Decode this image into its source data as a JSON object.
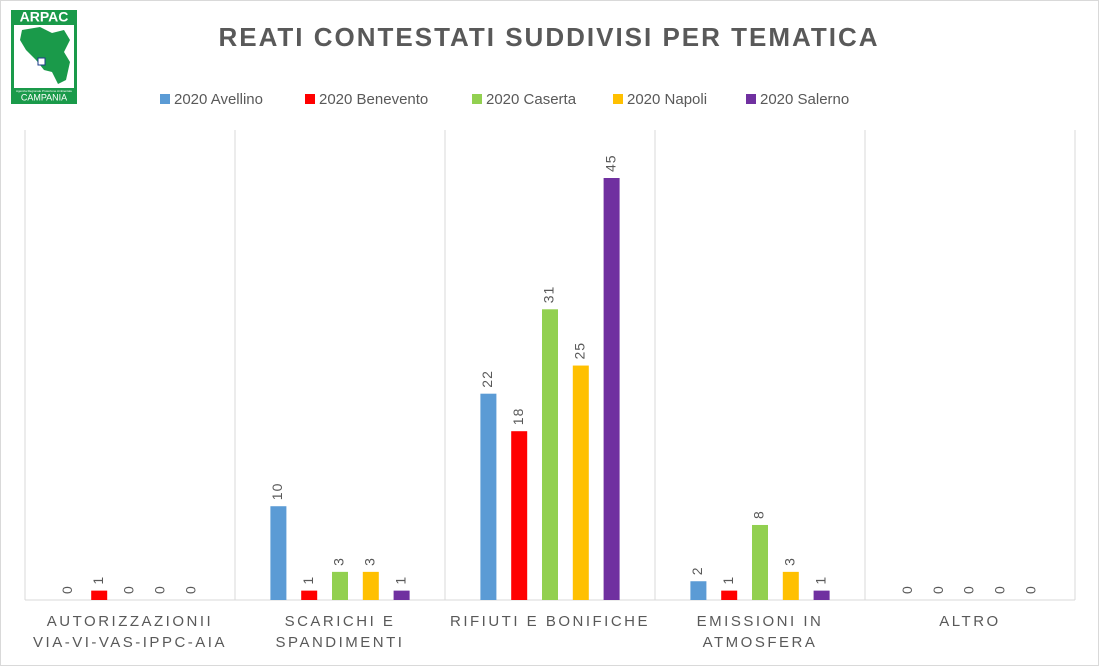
{
  "logo": {
    "name": "ARPAC",
    "tagline": "Agenzia Regionale Protezione Ambientale",
    "region": "CAMPANIA"
  },
  "chart_data": {
    "type": "bar",
    "title": "REATI CONTESTATI SUDDIVISI PER TEMATICA",
    "categories": [
      "AUTORIZZAZIONII VIA-VI-VAS-IPPC-AIA",
      "SCARICHI E SPANDIMENTI",
      "RIFIUTI E BONIFICHE",
      "EMISSIONI IN ATMOSFERA",
      "ALTRO"
    ],
    "series": [
      {
        "name": "2020 Avellino",
        "color": "#5b9bd5",
        "values": [
          0,
          10,
          22,
          2,
          0
        ]
      },
      {
        "name": "2020 Benevento",
        "color": "#ff0000",
        "values": [
          1,
          1,
          18,
          1,
          0
        ]
      },
      {
        "name": "2020 Caserta",
        "color": "#92d050",
        "values": [
          0,
          3,
          31,
          8,
          0
        ]
      },
      {
        "name": "2020 Napoli",
        "color": "#ffc000",
        "values": [
          0,
          3,
          25,
          3,
          0
        ]
      },
      {
        "name": "2020 Salerno",
        "color": "#7030a0",
        "values": [
          0,
          1,
          45,
          1,
          0
        ]
      }
    ],
    "ylim": [
      0,
      45
    ],
    "legend": "top",
    "data_labels": true
  }
}
